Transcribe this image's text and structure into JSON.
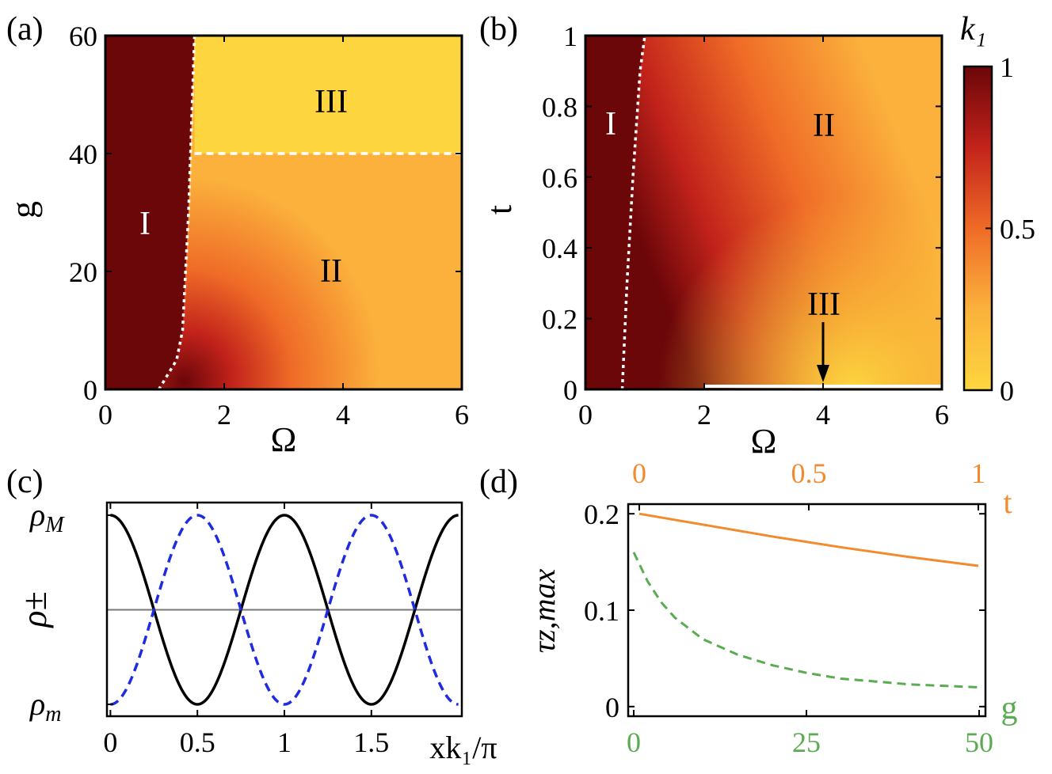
{
  "colors": {
    "dark_red": "#6b0609",
    "red": "#c3231b",
    "orange": "#ef6b27",
    "light_orange": "#fbb13c",
    "yellow": "#fdd63f",
    "series_blue": "#1f2bdf",
    "series_orange": "#f28a2e",
    "series_green": "#5bab53"
  },
  "chart_data": [
    {
      "panel": "(a)",
      "type": "heatmap",
      "xlabel": "Ω",
      "ylabel": "g",
      "xlim": [
        0,
        6
      ],
      "ylim": [
        0,
        60
      ],
      "xticks": [
        "0",
        "2",
        "4",
        "6"
      ],
      "yticks": [
        "0",
        "20",
        "40",
        "60"
      ],
      "region_labels": [
        "I",
        "II",
        "III"
      ],
      "boundaries": [
        {
          "style": "white-dotted",
          "points": [
            [
              0.9,
              0
            ],
            [
              1.2,
              5
            ],
            [
              1.3,
              10
            ],
            [
              1.35,
              20
            ],
            [
              1.4,
              30
            ],
            [
              1.45,
              45
            ],
            [
              1.5,
              60
            ]
          ]
        },
        {
          "style": "white-dashed",
          "points": [
            [
              1.5,
              40
            ],
            [
              6,
              40
            ]
          ]
        }
      ],
      "fields": {
        "region_I_omega_max": 1.5,
        "region_III_g_min": 40
      }
    },
    {
      "panel": "(b)",
      "type": "heatmap",
      "xlabel": "Ω",
      "ylabel": "t",
      "xlim": [
        0,
        6
      ],
      "ylim": [
        0,
        1
      ],
      "xticks": [
        "0",
        "2",
        "4",
        "6"
      ],
      "yticks": [
        "0",
        "0.2",
        "0.4",
        "0.6",
        "0.8",
        "1"
      ],
      "region_labels": [
        "I",
        "II",
        "III"
      ],
      "boundaries": [
        {
          "style": "white-dotted",
          "points": [
            [
              0.62,
              0
            ],
            [
              0.7,
              0.3
            ],
            [
              0.8,
              0.6
            ],
            [
              0.92,
              0.9
            ],
            [
              1.0,
              1.0
            ]
          ]
        },
        {
          "style": "white-solid",
          "points": [
            [
              2,
              0
            ],
            [
              6,
              0
            ]
          ]
        }
      ],
      "arrow": {
        "from": [
          4,
          0.19
        ],
        "to": [
          4,
          0.02
        ]
      },
      "colorbar": {
        "label": "k₁",
        "range": [
          0,
          1
        ],
        "ticks": [
          "0",
          "0.5",
          "1"
        ]
      }
    },
    {
      "panel": "(c)",
      "type": "line",
      "xlabel": "xk₁/π",
      "ylabel": "ρ±",
      "xlim": [
        -0.02,
        2.02
      ],
      "xticks": [
        "0",
        "0.5",
        "1",
        "1.5"
      ],
      "yticks": [
        "ρm",
        "ρM"
      ],
      "series": [
        {
          "style": "black-solid",
          "x": [
            0,
            0.25,
            0.5,
            0.75,
            1,
            1.25,
            1.5,
            1.75,
            2
          ],
          "y": [
            1,
            0,
            -1,
            0,
            1,
            0,
            -1,
            0,
            1
          ]
        },
        {
          "style": "blue-dashed",
          "x": [
            0,
            0.25,
            0.5,
            0.75,
            1,
            1.25,
            1.5,
            1.75,
            2
          ],
          "y": [
            -1,
            0,
            1,
            0,
            -1,
            0,
            1,
            0,
            -1
          ]
        }
      ],
      "midline": 0
    },
    {
      "panel": "(d)",
      "type": "line",
      "ylabel": "τz,max",
      "ylim": [
        -0.01,
        0.21
      ],
      "yticks": [
        "0",
        "0.1",
        "0.2"
      ],
      "top_axis": {
        "label": "t",
        "range": [
          0,
          1
        ],
        "ticks": [
          "0",
          "0.5",
          "1"
        ]
      },
      "bottom_axis": {
        "label": "g",
        "range": [
          0,
          50
        ],
        "ticks": [
          "0",
          "25",
          "50"
        ]
      },
      "series": [
        {
          "style": "orange-solid",
          "axis": "t",
          "x": [
            0,
            0.2,
            0.4,
            0.6,
            0.8,
            1.0
          ],
          "y": [
            0.2,
            0.188,
            0.176,
            0.165,
            0.155,
            0.146
          ]
        },
        {
          "style": "green-dashed",
          "axis": "g",
          "x": [
            0,
            2,
            4,
            6,
            10,
            15,
            20,
            25,
            30,
            40,
            50
          ],
          "y": [
            0.16,
            0.13,
            0.108,
            0.092,
            0.07,
            0.054,
            0.043,
            0.035,
            0.029,
            0.023,
            0.02
          ]
        }
      ]
    }
  ]
}
